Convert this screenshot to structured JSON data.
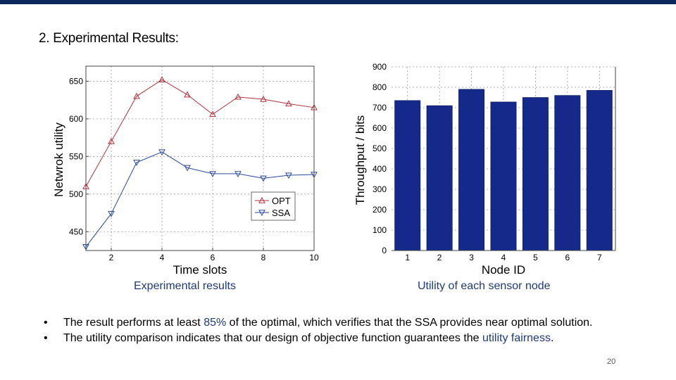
{
  "slide": {
    "title": "2. Experimental Results:",
    "page_number": "20",
    "bullets": [
      {
        "before": "The result performs at least ",
        "highlight": "85%",
        "after": " of the optimal, which verifies that the SSA provides near optimal solution."
      },
      {
        "before": "The utility comparison indicates that our design of objective function guarantees the ",
        "highlight": "utility fairness",
        "after": "."
      }
    ],
    "colors": {
      "top_bar": "#0b2a5b",
      "highlight": "#1f3a7a",
      "opt_line": "#b0303a",
      "ssa_line": "#2a4a9a",
      "bar_fill": "#14298a"
    }
  },
  "chart_data": [
    {
      "type": "line",
      "caption": "Experimental results",
      "xlabel": "Time slots",
      "ylabel": "Netwrok utility",
      "xlim": [
        1,
        10
      ],
      "ylim": [
        425,
        670
      ],
      "xticks": [
        2,
        4,
        6,
        8,
        10
      ],
      "yticks": [
        450,
        500,
        550,
        600,
        650
      ],
      "grid": true,
      "legend": "lower-right",
      "x": [
        1,
        2,
        3,
        4,
        5,
        6,
        7,
        8,
        9,
        10
      ],
      "series": [
        {
          "name": "OPT",
          "marker": "triangle-up",
          "color": "#b0303a",
          "values": [
            510,
            570,
            630,
            652,
            632,
            606,
            629,
            626,
            620,
            615
          ]
        },
        {
          "name": "SSA",
          "marker": "triangle-down",
          "color": "#2a4a9a",
          "values": [
            430,
            474,
            542,
            556,
            535,
            527,
            527,
            521,
            525,
            526
          ]
        }
      ]
    },
    {
      "type": "bar",
      "caption": "Utility of each sensor node",
      "xlabel": "Node ID",
      "ylabel": "Throughput / bits",
      "ylim": [
        0,
        900
      ],
      "yticks": [
        0,
        100,
        200,
        300,
        400,
        500,
        600,
        700,
        800,
        900
      ],
      "grid": true,
      "categories": [
        "1",
        "2",
        "3",
        "4",
        "5",
        "6",
        "7"
      ],
      "values": [
        735,
        710,
        790,
        728,
        750,
        760,
        785
      ],
      "color": "#14298a"
    }
  ]
}
